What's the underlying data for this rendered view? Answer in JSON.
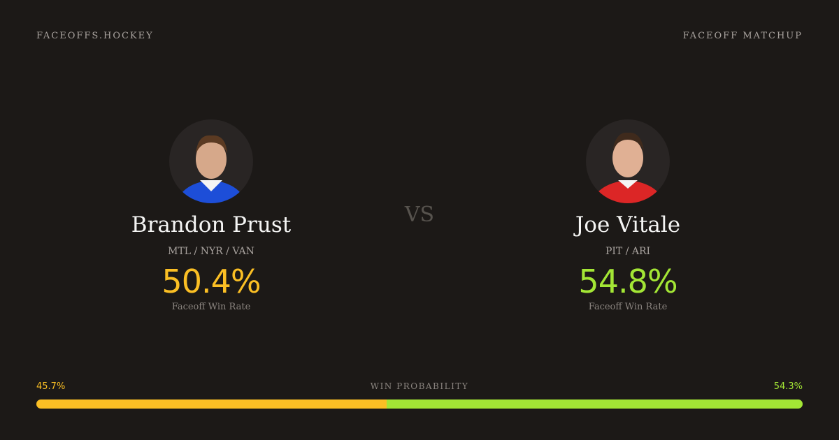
{
  "header": {
    "site": "FACEOFFS.HOCKEY",
    "label": "FACEOFF MATCHUP"
  },
  "players": [
    {
      "name": "Brandon Prust",
      "teams": "MTL / NYR / VAN",
      "rate": "50.4%",
      "rate_label": "Faceoff Win Rate",
      "color": "#fbbf24"
    },
    {
      "name": "Joe Vitale",
      "teams": "PIT / ARI",
      "rate": "54.8%",
      "rate_label": "Faceoff Win Rate",
      "color": "#a3e635"
    }
  ],
  "vs": "VS",
  "win_probability": {
    "label": "WIN PROBABILITY",
    "values": [
      45.7,
      54.3
    ],
    "value_labels": [
      "45.7%",
      "54.3%"
    ],
    "colors": [
      "#fbbf24",
      "#a3e635"
    ]
  }
}
